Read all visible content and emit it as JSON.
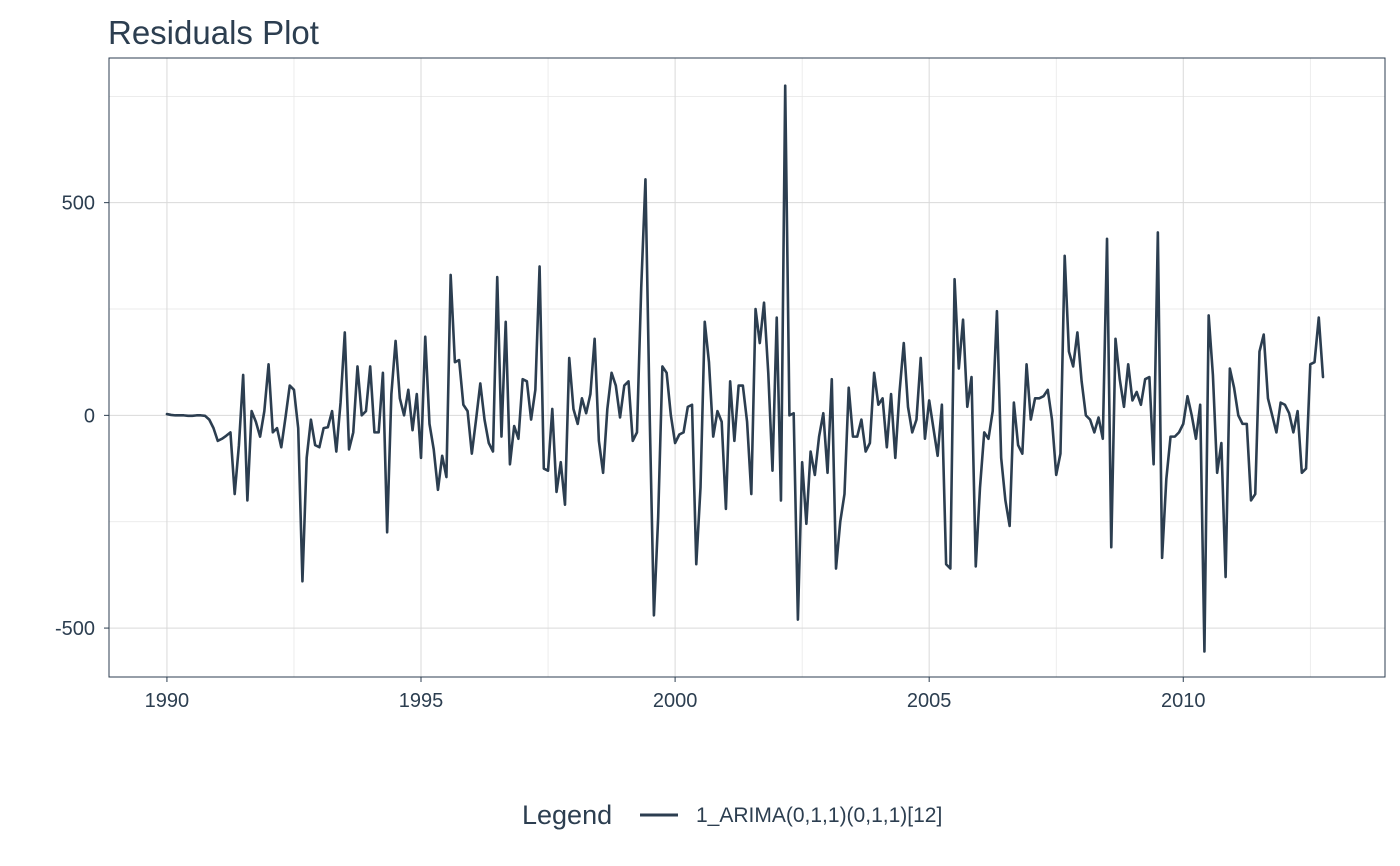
{
  "chart_data": {
    "type": "line",
    "title": "Residuals Plot",
    "xlabel": "",
    "ylabel": "",
    "xlim": [
      1988.86,
      2013.97
    ],
    "ylim": [
      -615,
      840
    ],
    "x_ticks": [
      1990,
      1995,
      2000,
      2005,
      2010
    ],
    "x_tick_labels": [
      "1990",
      "1995",
      "2000",
      "2005",
      "2010"
    ],
    "y_ticks": [
      -500,
      0,
      500
    ],
    "y_tick_labels": [
      "-500",
      "0",
      "500"
    ],
    "grid": true,
    "legend_position": "bottom",
    "legend": {
      "title": "Legend",
      "entries": [
        "1_ARIMA(0,1,1)(0,1,1)[12]"
      ]
    },
    "x_start": 1990.0,
    "x_step": 0.0833333,
    "series": [
      {
        "name": "1_ARIMA(0,1,1)(0,1,1)[12]",
        "color": "#2c3e50",
        "values": [
          3,
          1,
          0,
          0,
          0,
          -1,
          -1,
          0,
          0,
          -1,
          -10,
          -30,
          -60,
          -55,
          -48,
          -40,
          -185,
          -70,
          95,
          -200,
          10,
          -15,
          -50,
          10,
          120,
          -40,
          -30,
          -75,
          -5,
          70,
          60,
          -30,
          -390,
          -100,
          -10,
          -70,
          -75,
          -30,
          -28,
          10,
          -85,
          30,
          195,
          -80,
          -40,
          115,
          0,
          10,
          115,
          -40,
          -40,
          100,
          -275,
          50,
          175,
          40,
          0,
          60,
          -35,
          50,
          -100,
          185,
          -20,
          -80,
          -175,
          -95,
          -145,
          330,
          125,
          130,
          25,
          10,
          -90,
          -10,
          75,
          -10,
          -65,
          -85,
          325,
          -50,
          220,
          -115,
          -25,
          -55,
          85,
          80,
          -10,
          60,
          350,
          -125,
          -130,
          15,
          -180,
          -110,
          -210,
          135,
          15,
          -20,
          40,
          5,
          50,
          180,
          -60,
          -135,
          15,
          100,
          70,
          -5,
          70,
          80,
          -60,
          -40,
          300,
          555,
          0,
          -470,
          -240,
          115,
          100,
          0,
          -65,
          -45,
          -40,
          20,
          25,
          -350,
          -170,
          220,
          125,
          -50,
          10,
          -15,
          -220,
          80,
          -60,
          70,
          70,
          -15,
          -185,
          250,
          170,
          265,
          100,
          -130,
          230,
          -200,
          775,
          0,
          5,
          -480,
          -110,
          -255,
          -85,
          -140,
          -50,
          5,
          -135,
          85,
          -360,
          -250,
          -185,
          65,
          -50,
          -50,
          -10,
          -85,
          -65,
          100,
          25,
          40,
          -75,
          50,
          -100,
          55,
          170,
          20,
          -40,
          -10,
          135,
          -55,
          35,
          -30,
          -95,
          25,
          -350,
          -360,
          320,
          110,
          225,
          20,
          90,
          -355,
          -170,
          -40,
          -55,
          10,
          245,
          -100,
          -200,
          -260,
          30,
          -70,
          -90,
          120,
          -10,
          40,
          40,
          45,
          60,
          -10,
          -140,
          -90,
          375,
          150,
          115,
          195,
          80,
          0,
          -10,
          -40,
          -5,
          -55,
          415,
          -310,
          180,
          85,
          20,
          120,
          35,
          55,
          25,
          85,
          90,
          -115,
          430,
          -335,
          -150,
          -50,
          -50,
          -40,
          -20,
          45,
          0,
          -55,
          25,
          -555,
          235,
          95,
          -135,
          -65,
          -380,
          110,
          65,
          0,
          -20,
          -20,
          -200,
          -185,
          150,
          190,
          40,
          0,
          -40,
          30,
          25,
          5,
          -40,
          10,
          -135,
          -125,
          120,
          125,
          230,
          90
        ]
      }
    ]
  }
}
